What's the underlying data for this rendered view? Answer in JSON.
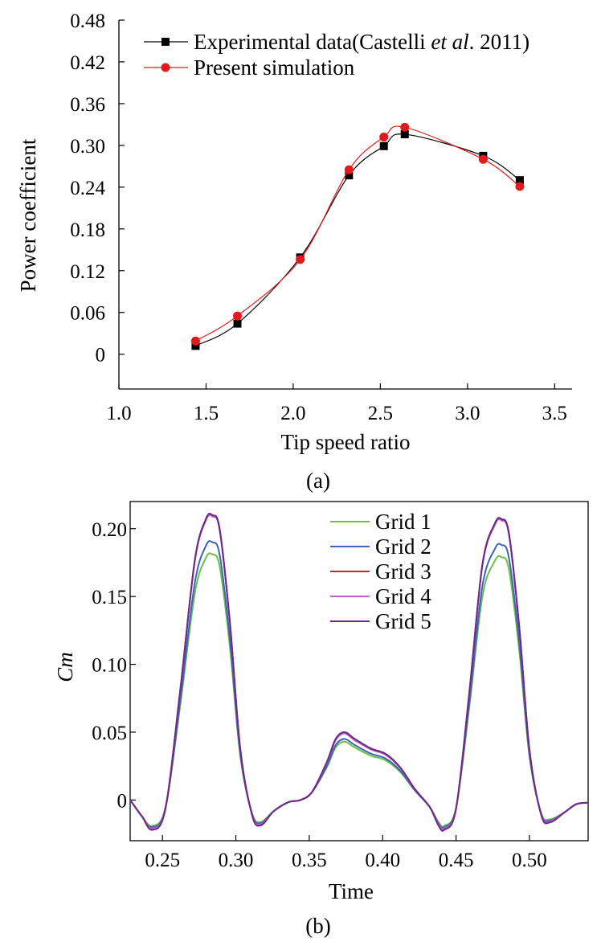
{
  "chart_data": [
    {
      "type": "line",
      "panel_label": "(a)",
      "xlabel": "Tip speed ratio",
      "ylabel": "Power coefficient",
      "xlim": [
        1.0,
        3.6
      ],
      "ylim": [
        -0.05,
        0.48
      ],
      "xticks": [
        "1.0",
        "1.5",
        "2.0",
        "2.5",
        "3.0",
        "3.5"
      ],
      "yticks": [
        "0",
        "0.06",
        "0.12",
        "0.18",
        "0.24",
        "0.30",
        "0.36",
        "0.42",
        "0.48"
      ],
      "legend": {
        "position": "top-right",
        "exp_prefix": "Experimental data(Castelli ",
        "exp_italic": "et al",
        "exp_suffix": ". 2011)",
        "sim_label": "Present simulation"
      },
      "series": [
        {
          "name": "Experimental data(Castelli et al. 2011)",
          "color": "#000000",
          "marker": "square",
          "x": [
            1.44,
            1.68,
            2.04,
            2.32,
            2.52,
            2.64,
            3.09,
            3.3
          ],
          "values": [
            0.012,
            0.044,
            0.139,
            0.257,
            0.299,
            0.316,
            0.285,
            0.25
          ]
        },
        {
          "name": "Present simulation",
          "color": "#e31a1c",
          "marker": "circle",
          "x": [
            1.44,
            1.68,
            2.04,
            2.32,
            2.52,
            2.64,
            3.09,
            3.3
          ],
          "values": [
            0.019,
            0.055,
            0.136,
            0.265,
            0.312,
            0.326,
            0.28,
            0.241
          ]
        }
      ]
    },
    {
      "type": "line",
      "panel_label": "(b)",
      "xlabel": "Time",
      "ylabel": "Cm",
      "xlim": [
        0.228,
        0.54
      ],
      "ylim": [
        -0.03,
        0.22
      ],
      "xticks": [
        "0.25",
        "0.30",
        "0.35",
        "0.40",
        "0.45",
        "0.50"
      ],
      "yticks": [
        "0",
        "0.05",
        "0.10",
        "0.15",
        "0.20"
      ],
      "legend": {
        "position": "top-right"
      },
      "series": [
        {
          "name": "Grid 1",
          "color": "#6cc04a",
          "peak1": 0.181,
          "bump": 0.043,
          "peak2": 0.179,
          "trough": -0.019
        },
        {
          "name": "Grid 2",
          "color": "#3a66b5",
          "peak1": 0.19,
          "bump": 0.045,
          "peak2": 0.188,
          "trough": -0.02
        },
        {
          "name": "Grid 3",
          "color": "#d0202a",
          "peak1": 0.21,
          "bump": 0.05,
          "peak2": 0.207,
          "trough": -0.021
        },
        {
          "name": "Grid 4",
          "color": "#c060c8",
          "peak1": 0.209,
          "bump": 0.049,
          "peak2": 0.206,
          "trough": -0.021
        },
        {
          "name": "Grid 5",
          "color": "#6a2a8a",
          "peak1": 0.21,
          "bump": 0.05,
          "peak2": 0.207,
          "trough": -0.022
        }
      ]
    }
  ]
}
